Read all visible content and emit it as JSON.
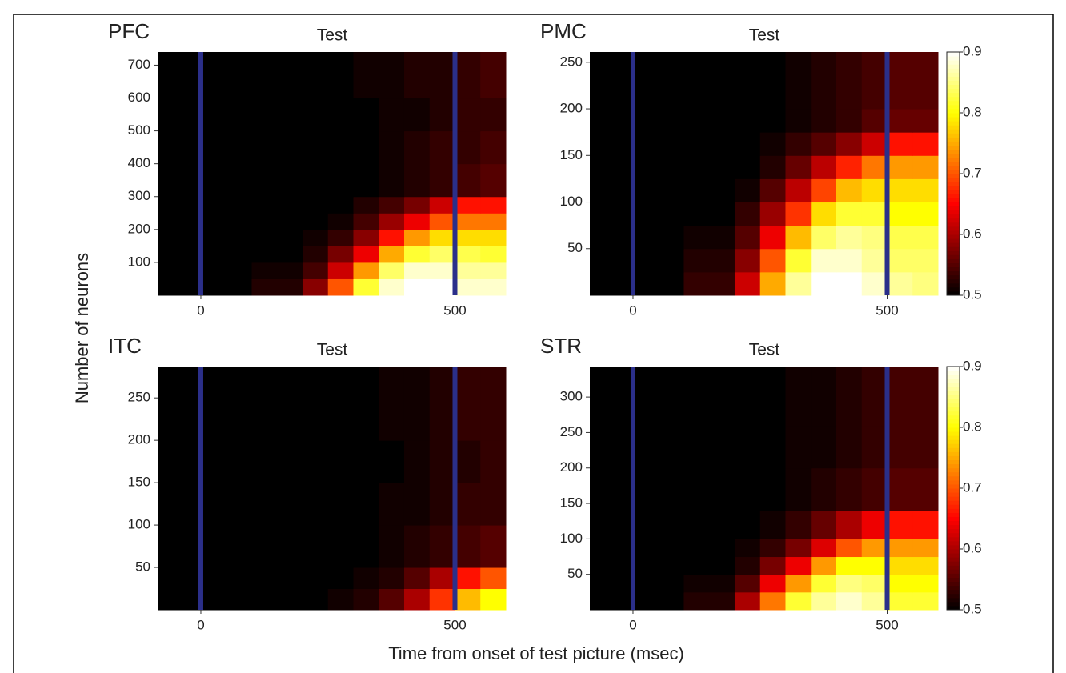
{
  "figure": {
    "ylabel": "Number of neurons",
    "xlabel": "Time from onset of test picture (msec)"
  },
  "chart_data": [
    {
      "type": "heatmap",
      "label": "PFC",
      "title": "Test",
      "colormap": "hot",
      "xlim": [
        -85,
        600
      ],
      "ylim": [
        0,
        740
      ],
      "xticks": [
        0,
        500
      ],
      "yticks": [
        100,
        200,
        300,
        400,
        500,
        600,
        700
      ],
      "vlines": [
        0,
        500
      ],
      "vline_color": "#2b2f8a",
      "xbins": [
        -85,
        0,
        100,
        200,
        250,
        300,
        350,
        400,
        450,
        500,
        550,
        600
      ],
      "ybins": [
        0,
        50,
        100,
        150,
        200,
        250,
        300,
        400,
        500,
        600,
        740
      ],
      "z": [
        [
          0.5,
          0.5,
          0.52,
          0.58,
          0.7,
          0.82,
          0.88,
          0.9,
          0.9,
          0.88,
          0.88
        ],
        [
          0.5,
          0.5,
          0.51,
          0.54,
          0.62,
          0.74,
          0.84,
          0.88,
          0.88,
          0.86,
          0.86
        ],
        [
          0.5,
          0.5,
          0.5,
          0.52,
          0.57,
          0.64,
          0.75,
          0.82,
          0.84,
          0.83,
          0.82
        ],
        [
          0.5,
          0.5,
          0.5,
          0.51,
          0.53,
          0.58,
          0.66,
          0.74,
          0.78,
          0.78,
          0.78
        ],
        [
          0.5,
          0.5,
          0.5,
          0.5,
          0.51,
          0.54,
          0.59,
          0.64,
          0.7,
          0.72,
          0.72
        ],
        [
          0.5,
          0.5,
          0.5,
          0.5,
          0.5,
          0.52,
          0.54,
          0.57,
          0.62,
          0.66,
          0.66
        ],
        [
          0.5,
          0.5,
          0.5,
          0.5,
          0.5,
          0.5,
          0.51,
          0.52,
          0.53,
          0.54,
          0.55
        ],
        [
          0.5,
          0.5,
          0.5,
          0.5,
          0.5,
          0.5,
          0.51,
          0.52,
          0.53,
          0.53,
          0.54
        ],
        [
          0.5,
          0.5,
          0.5,
          0.5,
          0.5,
          0.5,
          0.51,
          0.51,
          0.52,
          0.53,
          0.53
        ],
        [
          0.5,
          0.5,
          0.5,
          0.5,
          0.5,
          0.51,
          0.51,
          0.52,
          0.52,
          0.53,
          0.54
        ]
      ]
    },
    {
      "type": "heatmap",
      "label": "PMC",
      "title": "Test",
      "colormap": "hot",
      "xlim": [
        -85,
        600
      ],
      "ylim": [
        0,
        261
      ],
      "xticks": [
        0,
        500
      ],
      "yticks": [
        50,
        100,
        150,
        200,
        250
      ],
      "vlines": [
        0,
        500
      ],
      "vline_color": "#2b2f8a",
      "xbins": [
        -85,
        0,
        100,
        200,
        250,
        300,
        350,
        400,
        450,
        500,
        550,
        600
      ],
      "ybins": [
        0,
        25,
        50,
        75,
        100,
        125,
        150,
        175,
        200,
        261
      ],
      "z": [
        [
          0.5,
          0.5,
          0.53,
          0.62,
          0.75,
          0.86,
          0.9,
          0.9,
          0.88,
          0.86,
          0.85
        ],
        [
          0.5,
          0.5,
          0.52,
          0.58,
          0.7,
          0.82,
          0.88,
          0.88,
          0.86,
          0.84,
          0.84
        ],
        [
          0.5,
          0.5,
          0.51,
          0.55,
          0.64,
          0.76,
          0.84,
          0.86,
          0.85,
          0.83,
          0.83
        ],
        [
          0.5,
          0.5,
          0.5,
          0.53,
          0.59,
          0.68,
          0.78,
          0.82,
          0.82,
          0.8,
          0.8
        ],
        [
          0.5,
          0.5,
          0.5,
          0.51,
          0.55,
          0.61,
          0.69,
          0.76,
          0.78,
          0.78,
          0.78
        ],
        [
          0.5,
          0.5,
          0.5,
          0.5,
          0.52,
          0.56,
          0.61,
          0.67,
          0.72,
          0.74,
          0.74
        ],
        [
          0.5,
          0.5,
          0.5,
          0.5,
          0.51,
          0.53,
          0.55,
          0.58,
          0.62,
          0.66,
          0.66
        ],
        [
          0.5,
          0.5,
          0.5,
          0.5,
          0.5,
          0.51,
          0.52,
          0.53,
          0.55,
          0.56,
          0.56
        ],
        [
          0.5,
          0.5,
          0.5,
          0.5,
          0.5,
          0.51,
          0.52,
          0.53,
          0.54,
          0.55,
          0.55
        ]
      ],
      "colorbar": {
        "clim": [
          0.5,
          0.9
        ],
        "ticks": [
          0.5,
          0.6,
          0.7,
          0.8,
          0.9
        ]
      }
    },
    {
      "type": "heatmap",
      "label": "ITC",
      "title": "Test",
      "colormap": "hot",
      "xlim": [
        -85,
        600
      ],
      "ylim": [
        0,
        287
      ],
      "xticks": [
        0,
        500
      ],
      "yticks": [
        50,
        100,
        150,
        200,
        250
      ],
      "vlines": [
        0,
        500
      ],
      "vline_color": "#2b2f8a",
      "xbins": [
        -85,
        0,
        100,
        200,
        250,
        300,
        350,
        400,
        450,
        500,
        550,
        600
      ],
      "ybins": [
        0,
        25,
        50,
        100,
        150,
        200,
        287
      ],
      "z": [
        [
          0.5,
          0.5,
          0.5,
          0.5,
          0.51,
          0.52,
          0.55,
          0.6,
          0.68,
          0.76,
          0.8
        ],
        [
          0.5,
          0.5,
          0.5,
          0.5,
          0.5,
          0.51,
          0.52,
          0.55,
          0.6,
          0.66,
          0.7
        ],
        [
          0.5,
          0.5,
          0.5,
          0.5,
          0.5,
          0.5,
          0.51,
          0.52,
          0.53,
          0.54,
          0.55
        ],
        [
          0.5,
          0.5,
          0.5,
          0.5,
          0.5,
          0.5,
          0.51,
          0.51,
          0.52,
          0.53,
          0.53
        ],
        [
          0.5,
          0.5,
          0.5,
          0.5,
          0.5,
          0.5,
          0.5,
          0.51,
          0.52,
          0.52,
          0.53
        ],
        [
          0.5,
          0.5,
          0.5,
          0.5,
          0.5,
          0.5,
          0.51,
          0.51,
          0.52,
          0.53,
          0.53
        ]
      ]
    },
    {
      "type": "heatmap",
      "label": "STR",
      "title": "Test",
      "colormap": "hot",
      "xlim": [
        -85,
        600
      ],
      "ylim": [
        0,
        343
      ],
      "xticks": [
        0,
        500
      ],
      "yticks": [
        50,
        100,
        150,
        200,
        250,
        300
      ],
      "vlines": [
        0,
        500
      ],
      "vline_color": "#2b2f8a",
      "xbins": [
        -85,
        0,
        100,
        200,
        250,
        300,
        350,
        400,
        450,
        500,
        550,
        600
      ],
      "ybins": [
        0,
        25,
        50,
        75,
        100,
        140,
        200,
        260,
        343
      ],
      "z": [
        [
          0.5,
          0.5,
          0.52,
          0.6,
          0.72,
          0.82,
          0.86,
          0.88,
          0.86,
          0.82,
          0.82
        ],
        [
          0.5,
          0.5,
          0.51,
          0.55,
          0.64,
          0.74,
          0.82,
          0.85,
          0.84,
          0.8,
          0.8
        ],
        [
          0.5,
          0.5,
          0.5,
          0.52,
          0.57,
          0.64,
          0.74,
          0.8,
          0.8,
          0.78,
          0.78
        ],
        [
          0.5,
          0.5,
          0.5,
          0.51,
          0.53,
          0.57,
          0.63,
          0.7,
          0.74,
          0.74,
          0.74
        ],
        [
          0.5,
          0.5,
          0.5,
          0.5,
          0.51,
          0.53,
          0.56,
          0.6,
          0.64,
          0.66,
          0.66
        ],
        [
          0.5,
          0.5,
          0.5,
          0.5,
          0.5,
          0.51,
          0.52,
          0.53,
          0.54,
          0.55,
          0.55
        ],
        [
          0.5,
          0.5,
          0.5,
          0.5,
          0.5,
          0.51,
          0.51,
          0.52,
          0.53,
          0.54,
          0.54
        ],
        [
          0.5,
          0.5,
          0.5,
          0.5,
          0.5,
          0.51,
          0.51,
          0.52,
          0.53,
          0.54,
          0.54
        ]
      ],
      "colorbar": {
        "clim": [
          0.5,
          0.9
        ],
        "ticks": [
          0.5,
          0.6,
          0.7,
          0.8,
          0.9
        ]
      }
    }
  ]
}
